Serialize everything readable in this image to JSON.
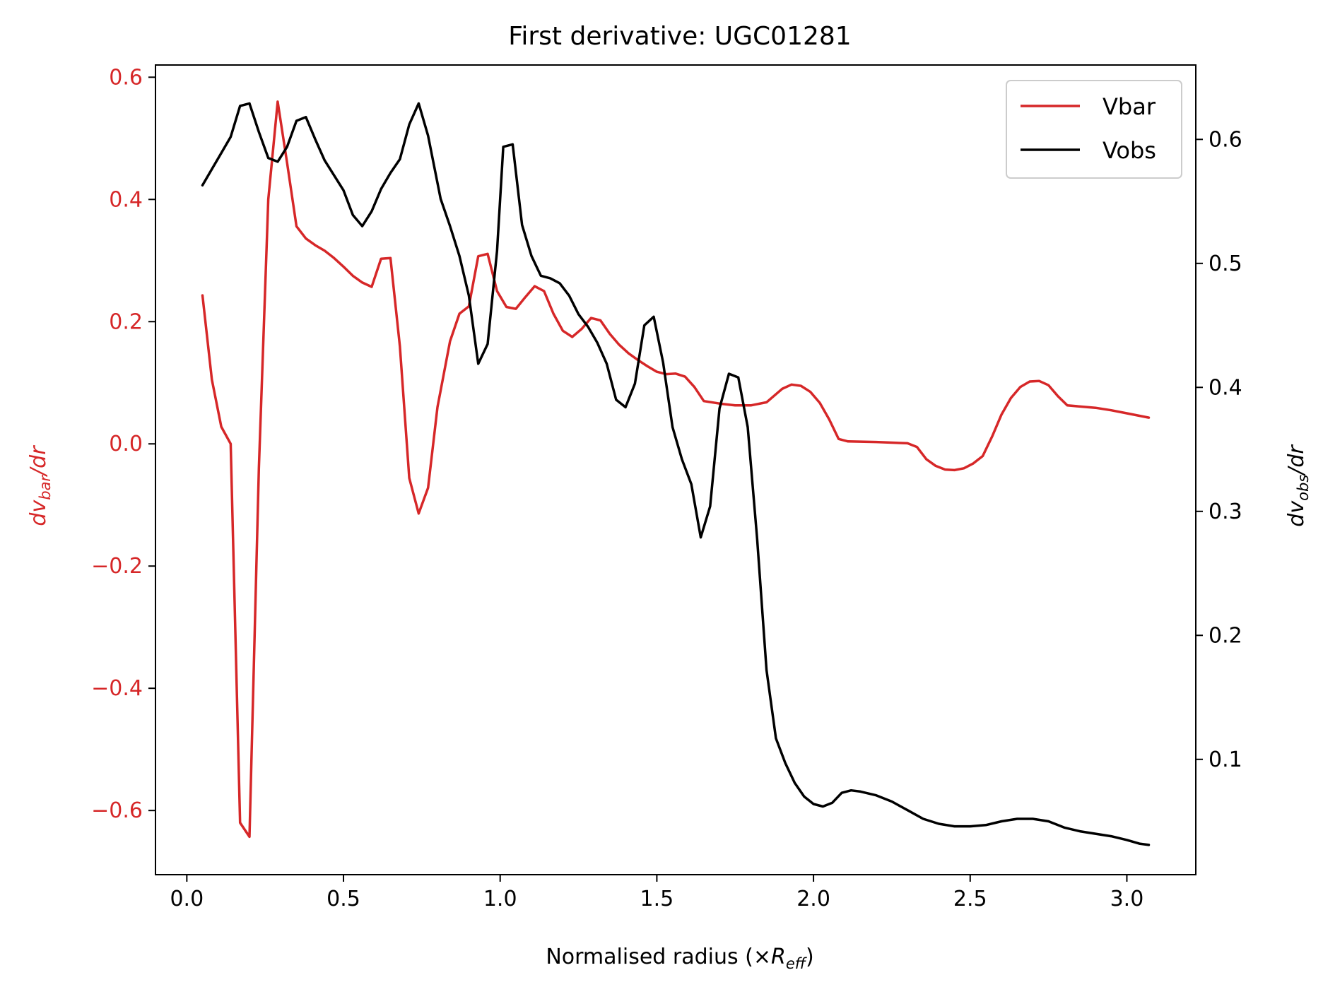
{
  "chart_data": {
    "type": "line",
    "title": "First derivative: UGC01281",
    "xlabel": "Normalised radius (×R_eff)",
    "xlabel_prefix": "Normalised radius (×",
    "xlabel_var": "R",
    "xlabel_sub": "eff",
    "xlabel_suffix": ")",
    "ylabel_left": "dv_bar/dr",
    "ylabel_left_parts": {
      "prefix": "dv",
      "sub": "bar",
      "suffix": "/dr"
    },
    "ylabel_right": "dv_obs/dr",
    "ylabel_right_parts": {
      "prefix": "dv",
      "sub": "obs",
      "suffix": "/dr"
    },
    "xlim": [
      -0.1,
      3.22
    ],
    "ylim_left": [
      -0.705,
      0.62
    ],
    "ylim_right": [
      0.007,
      0.66
    ],
    "x_ticks": [
      0.0,
      0.5,
      1.0,
      1.5,
      2.0,
      2.5,
      3.0
    ],
    "x_tick_labels": [
      "0.0",
      "0.5",
      "1.0",
      "1.5",
      "2.0",
      "2.5",
      "3.0"
    ],
    "y_left_ticks": [
      0.6,
      0.4,
      0.2,
      0.0,
      -0.2,
      -0.4,
      -0.6
    ],
    "y_left_tick_labels": [
      "0.6",
      "0.4",
      "0.2",
      "0.0",
      "−0.2",
      "−0.4",
      "−0.6"
    ],
    "y_right_ticks": [
      0.6,
      0.5,
      0.4,
      0.3,
      0.2,
      0.1
    ],
    "y_right_tick_labels": [
      "0.6",
      "0.5",
      "0.4",
      "0.3",
      "0.2",
      "0.1"
    ],
    "legend_position": "top-right",
    "grid": false,
    "series": [
      {
        "name": "Vbar",
        "axis": "left",
        "color": "#d62728",
        "points": [
          [
            0.05,
            0.243
          ],
          [
            0.08,
            0.105
          ],
          [
            0.11,
            0.028
          ],
          [
            0.14,
            0.0
          ],
          [
            0.17,
            -0.62
          ],
          [
            0.2,
            -0.643
          ],
          [
            0.23,
            -0.04
          ],
          [
            0.26,
            0.4
          ],
          [
            0.29,
            0.56
          ],
          [
            0.32,
            0.46
          ],
          [
            0.35,
            0.356
          ],
          [
            0.38,
            0.336
          ],
          [
            0.41,
            0.325
          ],
          [
            0.44,
            0.316
          ],
          [
            0.47,
            0.304
          ],
          [
            0.5,
            0.29
          ],
          [
            0.53,
            0.275
          ],
          [
            0.56,
            0.264
          ],
          [
            0.59,
            0.257
          ],
          [
            0.62,
            0.303
          ],
          [
            0.65,
            0.304
          ],
          [
            0.68,
            0.16
          ],
          [
            0.71,
            -0.056
          ],
          [
            0.74,
            -0.114
          ],
          [
            0.77,
            -0.072
          ],
          [
            0.8,
            0.06
          ],
          [
            0.84,
            0.168
          ],
          [
            0.87,
            0.213
          ],
          [
            0.9,
            0.225
          ],
          [
            0.93,
            0.307
          ],
          [
            0.96,
            0.311
          ],
          [
            0.99,
            0.25
          ],
          [
            1.02,
            0.224
          ],
          [
            1.05,
            0.221
          ],
          [
            1.08,
            0.24
          ],
          [
            1.11,
            0.258
          ],
          [
            1.14,
            0.25
          ],
          [
            1.17,
            0.213
          ],
          [
            1.2,
            0.185
          ],
          [
            1.23,
            0.175
          ],
          [
            1.26,
            0.188
          ],
          [
            1.29,
            0.206
          ],
          [
            1.32,
            0.202
          ],
          [
            1.35,
            0.18
          ],
          [
            1.38,
            0.162
          ],
          [
            1.41,
            0.148
          ],
          [
            1.44,
            0.137
          ],
          [
            1.47,
            0.127
          ],
          [
            1.5,
            0.118
          ],
          [
            1.53,
            0.114
          ],
          [
            1.56,
            0.115
          ],
          [
            1.59,
            0.11
          ],
          [
            1.62,
            0.093
          ],
          [
            1.65,
            0.07
          ],
          [
            1.7,
            0.066
          ],
          [
            1.75,
            0.063
          ],
          [
            1.8,
            0.063
          ],
          [
            1.85,
            0.068
          ],
          [
            1.9,
            0.09
          ],
          [
            1.93,
            0.097
          ],
          [
            1.96,
            0.095
          ],
          [
            1.99,
            0.085
          ],
          [
            2.02,
            0.067
          ],
          [
            2.05,
            0.04
          ],
          [
            2.08,
            0.008
          ],
          [
            2.11,
            0.004
          ],
          [
            2.2,
            0.003
          ],
          [
            2.3,
            0.001
          ],
          [
            2.33,
            -0.005
          ],
          [
            2.36,
            -0.025
          ],
          [
            2.39,
            -0.036
          ],
          [
            2.42,
            -0.042
          ],
          [
            2.45,
            -0.043
          ],
          [
            2.48,
            -0.04
          ],
          [
            2.51,
            -0.032
          ],
          [
            2.54,
            -0.02
          ],
          [
            2.57,
            0.012
          ],
          [
            2.6,
            0.048
          ],
          [
            2.63,
            0.075
          ],
          [
            2.66,
            0.093
          ],
          [
            2.69,
            0.102
          ],
          [
            2.72,
            0.103
          ],
          [
            2.75,
            0.096
          ],
          [
            2.78,
            0.078
          ],
          [
            2.81,
            0.063
          ],
          [
            2.9,
            0.059
          ],
          [
            2.95,
            0.055
          ],
          [
            3.0,
            0.05
          ],
          [
            3.04,
            0.046
          ],
          [
            3.07,
            0.043
          ]
        ]
      },
      {
        "name": "Vobs",
        "axis": "right",
        "color": "#000000",
        "points": [
          [
            0.05,
            0.563
          ],
          [
            0.08,
            0.576
          ],
          [
            0.11,
            0.589
          ],
          [
            0.14,
            0.602
          ],
          [
            0.17,
            0.627
          ],
          [
            0.2,
            0.629
          ],
          [
            0.23,
            0.606
          ],
          [
            0.26,
            0.585
          ],
          [
            0.29,
            0.582
          ],
          [
            0.32,
            0.594
          ],
          [
            0.35,
            0.615
          ],
          [
            0.38,
            0.618
          ],
          [
            0.41,
            0.6
          ],
          [
            0.44,
            0.583
          ],
          [
            0.47,
            0.571
          ],
          [
            0.5,
            0.559
          ],
          [
            0.53,
            0.539
          ],
          [
            0.56,
            0.53
          ],
          [
            0.59,
            0.542
          ],
          [
            0.62,
            0.56
          ],
          [
            0.65,
            0.573
          ],
          [
            0.68,
            0.584
          ],
          [
            0.71,
            0.612
          ],
          [
            0.74,
            0.629
          ],
          [
            0.77,
            0.603
          ],
          [
            0.81,
            0.552
          ],
          [
            0.84,
            0.53
          ],
          [
            0.87,
            0.506
          ],
          [
            0.9,
            0.474
          ],
          [
            0.93,
            0.419
          ],
          [
            0.96,
            0.435
          ],
          [
            0.99,
            0.51
          ],
          [
            1.01,
            0.594
          ],
          [
            1.04,
            0.596
          ],
          [
            1.07,
            0.531
          ],
          [
            1.1,
            0.506
          ],
          [
            1.13,
            0.49
          ],
          [
            1.16,
            0.488
          ],
          [
            1.19,
            0.484
          ],
          [
            1.22,
            0.474
          ],
          [
            1.25,
            0.459
          ],
          [
            1.28,
            0.449
          ],
          [
            1.31,
            0.436
          ],
          [
            1.34,
            0.419
          ],
          [
            1.37,
            0.39
          ],
          [
            1.4,
            0.384
          ],
          [
            1.43,
            0.403
          ],
          [
            1.46,
            0.45
          ],
          [
            1.49,
            0.457
          ],
          [
            1.52,
            0.42
          ],
          [
            1.55,
            0.368
          ],
          [
            1.58,
            0.342
          ],
          [
            1.61,
            0.322
          ],
          [
            1.64,
            0.279
          ],
          [
            1.67,
            0.304
          ],
          [
            1.7,
            0.383
          ],
          [
            1.73,
            0.411
          ],
          [
            1.76,
            0.408
          ],
          [
            1.79,
            0.368
          ],
          [
            1.82,
            0.278
          ],
          [
            1.85,
            0.172
          ],
          [
            1.88,
            0.117
          ],
          [
            1.91,
            0.097
          ],
          [
            1.94,
            0.081
          ],
          [
            1.97,
            0.07
          ],
          [
            2.0,
            0.064
          ],
          [
            2.03,
            0.062
          ],
          [
            2.06,
            0.065
          ],
          [
            2.09,
            0.073
          ],
          [
            2.12,
            0.075
          ],
          [
            2.15,
            0.074
          ],
          [
            2.2,
            0.071
          ],
          [
            2.25,
            0.066
          ],
          [
            2.3,
            0.059
          ],
          [
            2.35,
            0.052
          ],
          [
            2.4,
            0.048
          ],
          [
            2.45,
            0.046
          ],
          [
            2.5,
            0.046
          ],
          [
            2.55,
            0.047
          ],
          [
            2.6,
            0.05
          ],
          [
            2.65,
            0.052
          ],
          [
            2.7,
            0.052
          ],
          [
            2.75,
            0.05
          ],
          [
            2.8,
            0.045
          ],
          [
            2.85,
            0.042
          ],
          [
            2.9,
            0.04
          ],
          [
            2.95,
            0.038
          ],
          [
            3.0,
            0.035
          ],
          [
            3.04,
            0.032
          ],
          [
            3.07,
            0.031
          ]
        ]
      }
    ]
  }
}
